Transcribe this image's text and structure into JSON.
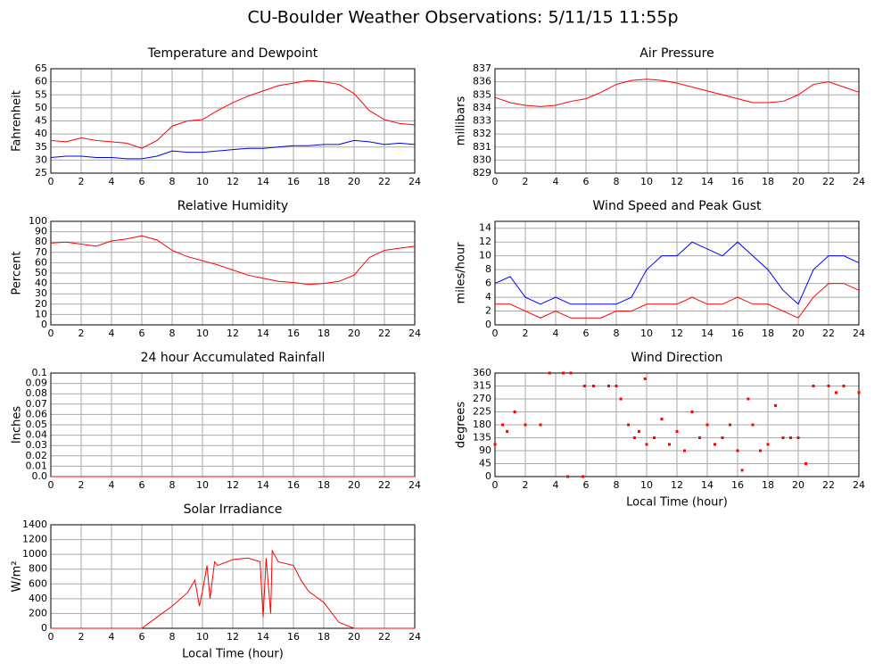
{
  "title": "CU-Boulder Weather Observations: 5/11/15 11:55p",
  "chart_data": [
    {
      "type": "line",
      "title": "Temperature and Dewpoint",
      "y_label": "Fahrenheit",
      "x": [
        0,
        1,
        2,
        3,
        4,
        5,
        6,
        7,
        8,
        9,
        10,
        11,
        12,
        13,
        14,
        15,
        16,
        17,
        18,
        19,
        20,
        21,
        22,
        23,
        24
      ],
      "series": [
        {
          "color": "#ff0000",
          "values": [
            37.5,
            37,
            38.5,
            37.5,
            37,
            36.5,
            34.5,
            37.5,
            43,
            45,
            45.5,
            49,
            52,
            54.5,
            56.5,
            58.5,
            59.5,
            60.5,
            60,
            59,
            55.5,
            49,
            45.5,
            44,
            43.5
          ]
        },
        {
          "color": "#0000ff",
          "values": [
            31,
            31.5,
            31.5,
            31,
            31,
            30.5,
            30.5,
            31.5,
            33.5,
            33,
            33,
            33.5,
            34,
            34.5,
            34.5,
            35,
            35.5,
            35.5,
            36,
            36,
            37.5,
            37,
            36,
            36.5,
            36
          ]
        }
      ],
      "xlim": [
        0,
        24
      ],
      "xticks": [
        0,
        2,
        4,
        6,
        8,
        10,
        12,
        14,
        16,
        18,
        20,
        22,
        24
      ],
      "ylim": [
        25,
        65
      ],
      "yticks": [
        25,
        30,
        35,
        40,
        45,
        50,
        55,
        60,
        65
      ],
      "grid": true
    },
    {
      "type": "line",
      "title": "Air Pressure",
      "y_label": "millibars",
      "x": [
        0,
        1,
        2,
        3,
        4,
        5,
        6,
        7,
        8,
        9,
        10,
        11,
        12,
        13,
        14,
        15,
        16,
        17,
        18,
        19,
        20,
        21,
        22,
        23,
        24
      ],
      "series": [
        {
          "color": "#ff0000",
          "values": [
            834.8,
            834.4,
            834.2,
            834.1,
            834.2,
            834.5,
            834.7,
            835.2,
            835.8,
            836.1,
            836.2,
            836.1,
            835.9,
            835.6,
            835.3,
            835.0,
            834.7,
            834.4,
            834.4,
            834.5,
            835.0,
            835.8,
            836.0,
            835.6,
            835.2
          ]
        }
      ],
      "xlim": [
        0,
        24
      ],
      "xticks": [
        0,
        2,
        4,
        6,
        8,
        10,
        12,
        14,
        16,
        18,
        20,
        22,
        24
      ],
      "ylim": [
        829,
        837
      ],
      "yticks": [
        829,
        830,
        831,
        832,
        833,
        834,
        835,
        836,
        837
      ],
      "grid": true
    },
    {
      "type": "line",
      "title": "Relative Humidity",
      "y_label": "Percent",
      "x": [
        0,
        1,
        2,
        3,
        4,
        5,
        6,
        7,
        8,
        9,
        10,
        11,
        12,
        13,
        14,
        15,
        16,
        17,
        18,
        19,
        20,
        21,
        22,
        23,
        24
      ],
      "series": [
        {
          "color": "#ff0000",
          "values": [
            79,
            80,
            78,
            76,
            81,
            83,
            86,
            82,
            72,
            66,
            62,
            58,
            53,
            48,
            45,
            42,
            41,
            39,
            40,
            42,
            48,
            65,
            72,
            74,
            76
          ]
        }
      ],
      "xlim": [
        0,
        24
      ],
      "xticks": [
        0,
        2,
        4,
        6,
        8,
        10,
        12,
        14,
        16,
        18,
        20,
        22,
        24
      ],
      "ylim": [
        0,
        100
      ],
      "yticks": [
        0,
        10,
        20,
        30,
        40,
        50,
        60,
        70,
        80,
        90,
        100
      ],
      "grid": true
    },
    {
      "type": "line",
      "title": "Wind Speed and Peak Gust",
      "y_label": "miles/hour",
      "x": [
        0,
        1,
        2,
        3,
        4,
        5,
        6,
        7,
        8,
        9,
        10,
        11,
        12,
        13,
        14,
        15,
        16,
        17,
        18,
        19,
        20,
        21,
        22,
        23,
        24
      ],
      "series": [
        {
          "color": "#0000ff",
          "values": [
            6,
            7,
            4,
            3,
            4,
            3,
            3,
            3,
            3,
            4,
            8,
            10,
            10,
            12,
            11,
            10,
            12,
            10,
            8,
            5,
            3,
            8,
            10,
            10,
            9
          ]
        },
        {
          "color": "#ff0000",
          "values": [
            3,
            3,
            2,
            1,
            2,
            1,
            1,
            1,
            2,
            2,
            3,
            3,
            3,
            4,
            3,
            3,
            4,
            3,
            3,
            2,
            1,
            4,
            6,
            6,
            5
          ]
        }
      ],
      "xlim": [
        0,
        24
      ],
      "xticks": [
        0,
        2,
        4,
        6,
        8,
        10,
        12,
        14,
        16,
        18,
        20,
        22,
        24
      ],
      "ylim": [
        0,
        15
      ],
      "yticks": [
        0,
        2,
        4,
        6,
        8,
        10,
        12,
        14
      ],
      "grid": true
    },
    {
      "type": "line",
      "title": "24 hour Accumulated Rainfall",
      "y_label": "Inches",
      "x": [
        0,
        24
      ],
      "series": [
        {
          "color": "#ff0000",
          "values": [
            0,
            0
          ]
        }
      ],
      "xlim": [
        0,
        24
      ],
      "xticks": [
        0,
        2,
        4,
        6,
        8,
        10,
        12,
        14,
        16,
        18,
        20,
        22,
        24
      ],
      "ylim": [
        0,
        0.1
      ],
      "yticks": [
        {
          "value": 0,
          "label": "0.0"
        },
        0.01,
        0.02,
        0.03,
        0.04,
        0.05,
        0.06,
        0.07,
        0.08,
        0.09,
        0.1
      ],
      "grid": true
    },
    {
      "type": "scatter",
      "title": "Wind Direction",
      "y_label": "degrees",
      "x_label": "Local Time (hour)",
      "x": [
        0,
        0.5,
        0.8,
        1.3,
        2,
        3,
        3.6,
        4.5,
        4.8,
        5,
        5.8,
        5.9,
        6.5,
        7.5,
        8,
        8.3,
        8.8,
        9.2,
        9.5,
        9.9,
        10,
        10.5,
        11,
        11.5,
        12,
        12.5,
        13,
        13.5,
        14,
        14.5,
        15,
        15.5,
        16,
        16.3,
        16.7,
        17,
        17.5,
        18,
        18.5,
        19,
        19.5,
        20,
        20.5,
        21,
        22,
        22.5,
        23,
        24
      ],
      "series": [
        {
          "color": "#ff0000",
          "values": [
            112,
            180,
            157,
            225,
            180,
            180,
            360,
            360,
            0,
            360,
            0,
            315,
            315,
            315,
            315,
            270,
            180,
            135,
            157,
            340,
            112,
            135,
            200,
            112,
            157,
            90,
            225,
            135,
            180,
            112,
            135,
            180,
            90,
            22,
            270,
            180,
            90,
            112,
            247,
            135,
            135,
            135,
            45,
            315,
            315,
            292,
            315,
            292
          ]
        }
      ],
      "xlim": [
        0,
        24
      ],
      "xticks": [
        0,
        2,
        4,
        6,
        8,
        10,
        12,
        14,
        16,
        18,
        20,
        22,
        24
      ],
      "ylim": [
        0,
        360
      ],
      "yticks": [
        0,
        45,
        90,
        135,
        180,
        225,
        270,
        315,
        360
      ],
      "grid": true
    },
    {
      "type": "line",
      "title": "Solar Irradiance",
      "y_label": "W/m²",
      "x_label": "Local Time (hour)",
      "x": [
        0,
        6,
        7,
        8,
        9,
        9.5,
        9.8,
        10,
        10.3,
        10.5,
        10.8,
        11,
        12,
        13,
        13.8,
        14,
        14.2,
        14.5,
        14.6,
        15,
        16,
        16.5,
        17,
        18,
        19,
        20,
        24
      ],
      "series": [
        {
          "color": "#ff0000",
          "values": [
            0,
            0,
            150,
            300,
            480,
            650,
            300,
            500,
            850,
            400,
            900,
            850,
            930,
            950,
            900,
            150,
            950,
            200,
            1050,
            900,
            850,
            650,
            500,
            350,
            80,
            0,
            0
          ]
        }
      ],
      "xlim": [
        0,
        24
      ],
      "xticks": [
        0,
        2,
        4,
        6,
        8,
        10,
        12,
        14,
        16,
        18,
        20,
        22,
        24
      ],
      "ylim": [
        0,
        1400
      ],
      "yticks": [
        0,
        200,
        400,
        600,
        800,
        1000,
        1200,
        1400
      ],
      "grid": true
    }
  ]
}
